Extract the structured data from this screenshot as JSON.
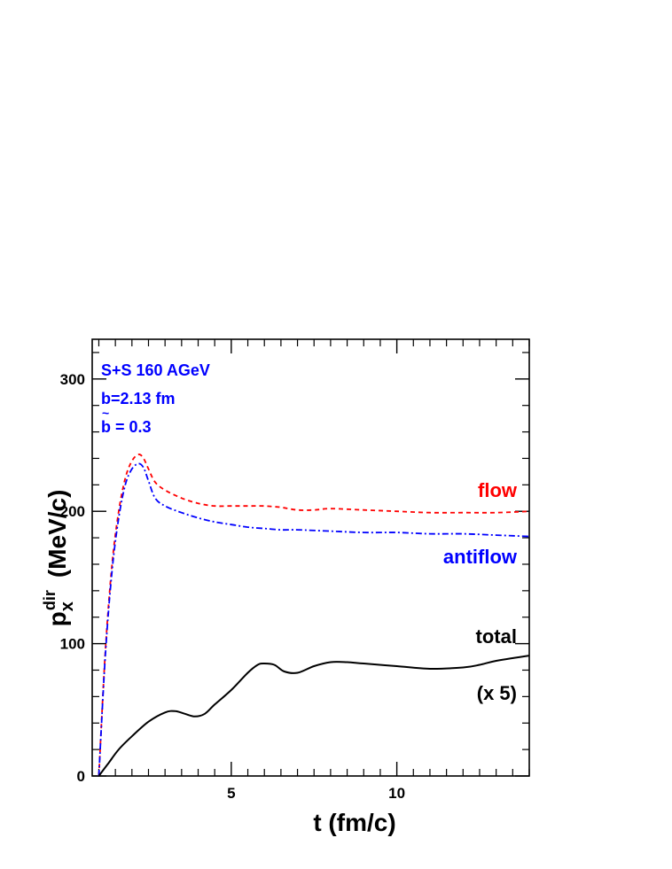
{
  "chart_data": {
    "type": "line",
    "title": "",
    "xlabel": "t  (fm/c)",
    "ylabel": {
      "base": "p",
      "sub": "x",
      "sup": "dir",
      "unit": "(MeV/c)"
    },
    "xlim": [
      0.8,
      14
    ],
    "ylim": [
      0,
      330
    ],
    "x_ticks": [
      5,
      10
    ],
    "y_ticks": [
      0,
      100,
      200,
      300
    ],
    "grid": false,
    "info_text": {
      "color": "#0000ff",
      "line1": "S+S 160 AGeV",
      "line2": "b=2.13 fm",
      "line3": "b = 0.3"
    },
    "series": [
      {
        "name": "flow",
        "color": "#ff0000",
        "style": "dashed",
        "x": [
          1.0,
          1.2,
          1.4,
          1.6,
          1.8,
          2.0,
          2.2,
          2.35,
          2.5,
          2.7,
          3.0,
          3.5,
          4.0,
          4.5,
          5.0,
          5.5,
          6.0,
          6.5,
          7.0,
          7.5,
          8.0,
          9.0,
          10.0,
          11.0,
          12.0,
          13.0,
          14.0
        ],
        "y": [
          0,
          95,
          160,
          200,
          225,
          238,
          243,
          240,
          232,
          222,
          216,
          210,
          206,
          204,
          204,
          204,
          204,
          203,
          201,
          201,
          202,
          201,
          200,
          199,
          199,
          199,
          200
        ]
      },
      {
        "name": "antiflow",
        "color": "#0000ff",
        "style": "dashdot",
        "x": [
          1.0,
          1.2,
          1.4,
          1.6,
          1.8,
          2.0,
          2.2,
          2.35,
          2.5,
          2.7,
          3.0,
          3.5,
          4.0,
          4.5,
          5.0,
          5.5,
          6.0,
          6.5,
          7.0,
          8.0,
          9.0,
          10.0,
          11.0,
          12.0,
          13.0,
          14.0
        ],
        "y": [
          0,
          92,
          155,
          195,
          220,
          232,
          236,
          233,
          223,
          210,
          204,
          199,
          195,
          192,
          190,
          188,
          187,
          186,
          186,
          185,
          184,
          184,
          183,
          183,
          182,
          181
        ]
      },
      {
        "name": "total",
        "color": "#000000",
        "style": "solid",
        "x": [
          1.0,
          1.3,
          1.6,
          2.0,
          2.5,
          3.0,
          3.3,
          3.6,
          3.9,
          4.2,
          4.5,
          5.0,
          5.5,
          5.8,
          6.0,
          6.3,
          6.6,
          7.0,
          7.5,
          8.0,
          8.5,
          9.0,
          10.0,
          11.0,
          12.0,
          12.5,
          13.0,
          14.0
        ],
        "y": [
          0,
          10,
          20,
          30,
          41,
          48,
          49,
          47,
          45,
          47,
          54,
          65,
          78,
          84,
          85,
          84,
          79,
          78,
          83,
          86,
          86,
          85,
          83,
          81,
          82,
          84,
          87,
          91
        ]
      }
    ],
    "series_labels": {
      "flow": "flow",
      "antiflow": "antiflow",
      "total": "total",
      "scale_note": "(x 5)"
    }
  }
}
